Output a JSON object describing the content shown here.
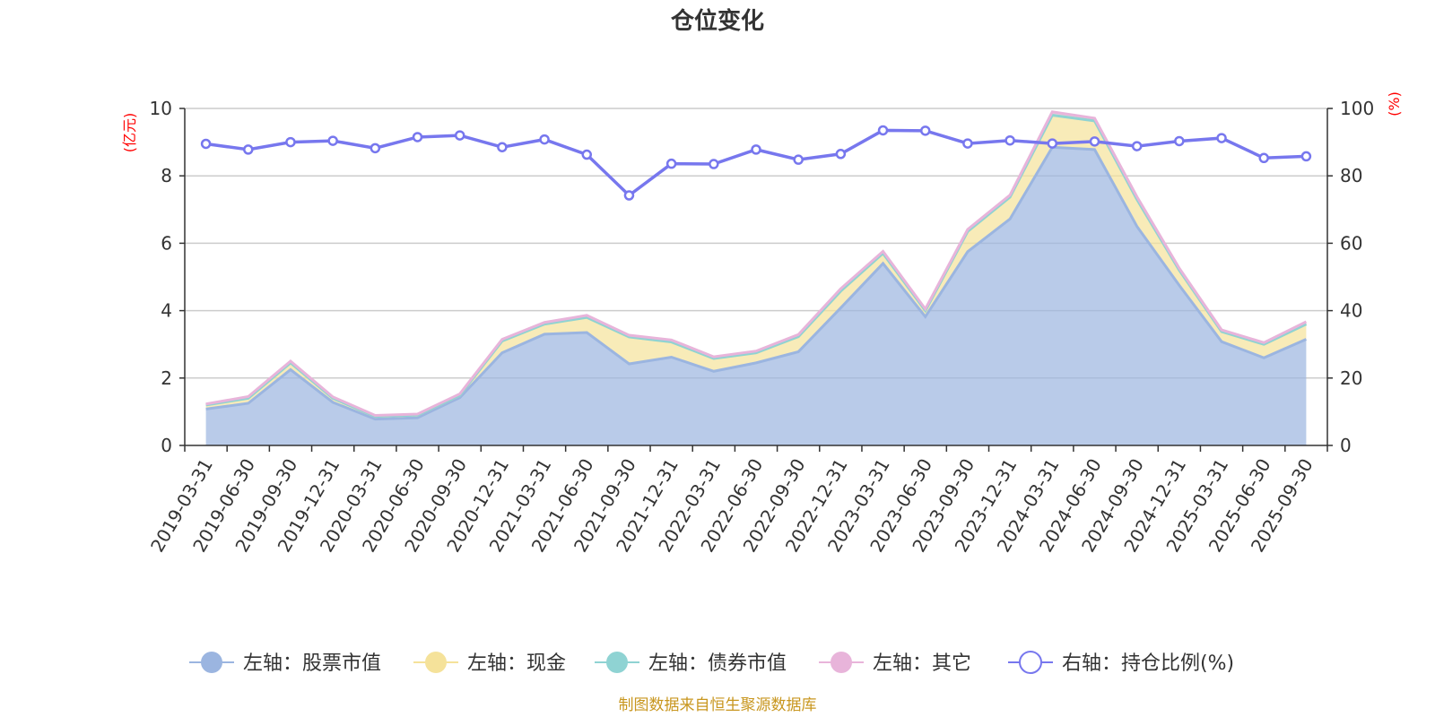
{
  "chart_data": {
    "type": "area",
    "title": "仓位变化",
    "y_left_unit": "(亿元)",
    "y_right_unit": "(%)",
    "y_left_ticks": [
      "0",
      "2",
      "4",
      "6",
      "8",
      "10"
    ],
    "y_right_ticks": [
      "0",
      "20",
      "40",
      "60",
      "80",
      "100"
    ],
    "ylim_left": [
      0,
      10
    ],
    "ylim_right": [
      0,
      100
    ],
    "grid": true,
    "legend_position": "bottom",
    "categories": [
      "2019-03-31",
      "2019-06-30",
      "2019-09-30",
      "2019-12-31",
      "2020-03-31",
      "2020-06-30",
      "2020-09-30",
      "2020-12-31",
      "2021-03-31",
      "2021-06-30",
      "2021-09-30",
      "2021-12-31",
      "2022-03-31",
      "2022-06-30",
      "2022-09-30",
      "2022-12-31",
      "2023-03-31",
      "2023-06-30",
      "2023-09-30",
      "2023-12-31",
      "2024-03-31",
      "2024-06-30",
      "2024-09-30",
      "2024-12-31",
      "2025-03-31",
      "2025-06-30",
      "2025-09-30"
    ],
    "series": [
      {
        "name": "左轴：股票市值",
        "axis": "left",
        "kind": "area",
        "color": "#9bb5e0",
        "values": [
          1.08,
          1.25,
          2.25,
          1.28,
          0.78,
          0.82,
          1.42,
          2.75,
          3.3,
          3.35,
          2.42,
          2.62,
          2.2,
          2.45,
          2.78,
          4.08,
          5.4,
          3.82,
          5.75,
          6.72,
          8.85,
          8.78,
          6.5,
          4.75,
          3.08,
          2.6,
          3.15
        ]
      },
      {
        "name": "左轴：现金",
        "axis": "left",
        "kind": "area",
        "color": "#f5e29a",
        "values": [
          0.12,
          0.15,
          0.2,
          0.12,
          0.08,
          0.08,
          0.07,
          0.35,
          0.3,
          0.45,
          0.8,
          0.45,
          0.38,
          0.3,
          0.45,
          0.5,
          0.3,
          0.18,
          0.6,
          0.65,
          0.95,
          0.85,
          0.8,
          0.45,
          0.3,
          0.4,
          0.45
        ]
      },
      {
        "name": "左轴：债券市值",
        "axis": "left",
        "kind": "area",
        "color": "#8fd3d3",
        "values": [
          0,
          0,
          0,
          0,
          0,
          0,
          0,
          0,
          0,
          0,
          0,
          0,
          0,
          0,
          0,
          0,
          0,
          0,
          0,
          0,
          0,
          0,
          0,
          0,
          0,
          0,
          0
        ]
      },
      {
        "name": "左轴：其它",
        "axis": "left",
        "kind": "area",
        "color": "#e8b4da",
        "values": [
          0.03,
          0.05,
          0.05,
          0.04,
          0.03,
          0.03,
          0.04,
          0.05,
          0.05,
          0.06,
          0.05,
          0.06,
          0.05,
          0.05,
          0.06,
          0.07,
          0.06,
          0.05,
          0.06,
          0.06,
          0.1,
          0.08,
          0.08,
          0.06,
          0.05,
          0.05,
          0.07
        ]
      },
      {
        "name": "右轴：持仓比例(%)",
        "axis": "right",
        "kind": "line",
        "color": "#7777ee",
        "values": [
          89.5,
          87.8,
          90.0,
          90.4,
          88.2,
          91.5,
          92.0,
          88.5,
          90.8,
          86.3,
          74.2,
          83.6,
          83.5,
          87.8,
          84.8,
          86.5,
          93.5,
          93.4,
          89.6,
          90.5,
          89.6,
          90.2,
          88.8,
          90.3,
          91.2,
          85.3,
          85.8
        ]
      }
    ]
  },
  "source_note": "制图数据来自恒生聚源数据库"
}
